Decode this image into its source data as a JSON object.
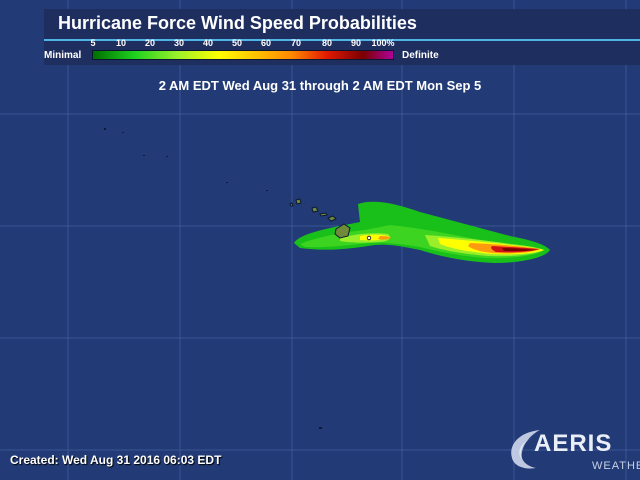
{
  "title": "Hurricane Force Wind Speed Probabilities",
  "legend": {
    "min_label": "Minimal",
    "max_label": "Definite",
    "ticks": [
      "5",
      "10",
      "20",
      "30",
      "40",
      "50",
      "60",
      "70",
      "80",
      "90",
      "100%"
    ]
  },
  "period": "2 AM EDT Wed Aug 31 through 2 AM EDT Mon Sep 5",
  "created": "Created: Wed Aug 31 2016 06:03 EDT",
  "logo": {
    "main": "AERIS",
    "sub": "WEATHER"
  },
  "colors": {
    "ocean": "#223b77",
    "grid": "#3b5596",
    "low": "#19c019",
    "mid": "#8fe82a",
    "high": "#ffff00",
    "very_high": "#ff8a00",
    "extreme": "#cc1010",
    "land": "#7a8f3a"
  }
}
